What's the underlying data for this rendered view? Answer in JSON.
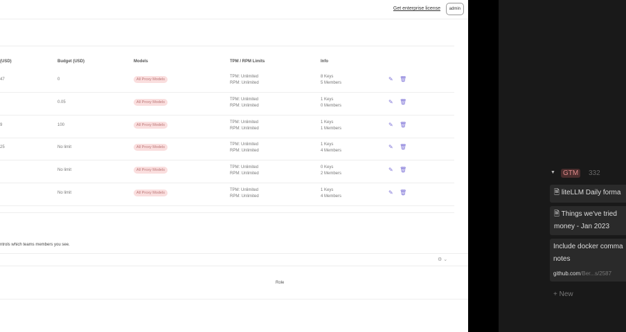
{
  "topbar": {
    "license_link": "Get enterprise license",
    "user_button": "admin"
  },
  "table": {
    "headers": [
      "(USD)",
      "Budget (USD)",
      "Models",
      "TPM / RPM Limits",
      "Info"
    ],
    "rows": [
      {
        "spend": "47",
        "budget": "0",
        "models": "All Proxy Models",
        "tpm": "TPM: Unlimited",
        "rpm": "RPM: Unlimited",
        "keys": "8 Keys",
        "members": "5 Members"
      },
      {
        "spend": "",
        "budget": "0.05",
        "models": "All Proxy Models",
        "tpm": "TPM: Unlimited",
        "rpm": "RPM: Unlimited",
        "keys": "1 Keys",
        "members": "0 Members"
      },
      {
        "spend": "9",
        "budget": "100",
        "models": "All Proxy Models",
        "tpm": "TPM: Unlimited",
        "rpm": "RPM: Unlimited",
        "keys": "1 Keys",
        "members": "1 Members"
      },
      {
        "spend": "25",
        "budget": "No limit",
        "models": "All Proxy Models",
        "tpm": "TPM: Unlimited",
        "rpm": "RPM: Unlimited",
        "keys": "1 Keys",
        "members": "4 Members"
      },
      {
        "spend": "",
        "budget": "No limit",
        "models": "All Proxy Models",
        "tpm": "TPM: Unlimited",
        "rpm": "RPM: Unlimited",
        "keys": "0 Keys",
        "members": "2 Members"
      },
      {
        "spend": "",
        "budget": "No limit",
        "models": "All Proxy Models",
        "tpm": "TPM: Unlimited",
        "rpm": "RPM: Unlimited",
        "keys": "1 Keys",
        "members": "4 Members"
      }
    ]
  },
  "note": "ntrols which teams members you see.",
  "members_table": {
    "role_header": "Role"
  },
  "notion": {
    "group": "GTM",
    "count": "332",
    "cards": [
      "liteLLM Daily forma",
      "Things we've tried money - Jan 2023",
      "Include docker comma notes"
    ],
    "link_domain": "github.com",
    "link_path": "/Ber...s/2587",
    "new_label": "New"
  },
  "colors": {
    "accent": "#7a6fd6",
    "pill_bg": "#fadede",
    "dark_bg": "#191919"
  }
}
